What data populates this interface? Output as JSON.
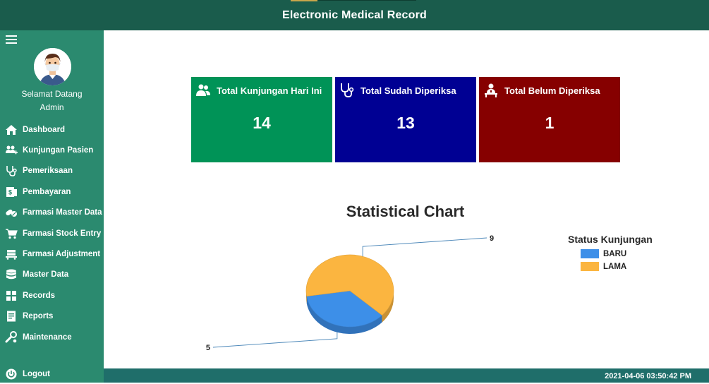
{
  "header": {
    "title": "Electronic Medical Record"
  },
  "sidebar": {
    "welcome": "Selamat Datang",
    "user": "Admin",
    "items": [
      {
        "label": "Dashboard",
        "icon": "home-icon"
      },
      {
        "label": "Kunjungan Pasien",
        "icon": "users-add-icon"
      },
      {
        "label": "Pemeriksaan",
        "icon": "stethoscope-icon"
      },
      {
        "label": "Pembayaran",
        "icon": "invoice-dollar-icon"
      },
      {
        "label": "Farmasi Master Data",
        "icon": "pills-icon"
      },
      {
        "label": "Farmasi Stock Entry",
        "icon": "cart-icon"
      },
      {
        "label": "Farmasi Adjustment",
        "icon": "dolly-icon"
      },
      {
        "label": "Master Data",
        "icon": "database-icon"
      },
      {
        "label": "Records",
        "icon": "th-large-icon"
      },
      {
        "label": "Reports",
        "icon": "file-report-icon"
      },
      {
        "label": "Maintenance",
        "icon": "tools-icon"
      }
    ],
    "logout": "Logout"
  },
  "cards": [
    {
      "title": "Total Kunjungan Hari Ini",
      "value": "14",
      "color": "#009357",
      "icon": "user-friends-icon"
    },
    {
      "title": "Total Sudah Diperiksa",
      "value": "13",
      "color": "#000093",
      "icon": "stethoscope-icon"
    },
    {
      "title": "Total Belum Diperiksa",
      "value": "1",
      "color": "#860000",
      "icon": "hospital-user-icon"
    }
  ],
  "footer": {
    "timestamp": "2021-04-06 03:50:42 PM"
  },
  "chart_data": {
    "type": "pie",
    "title": "Statistical Chart",
    "legend_title": "Status Kunjungan",
    "legend_position": "right",
    "categories": [
      "BARU",
      "LAMA"
    ],
    "values": [
      5,
      9
    ],
    "colors": [
      "#3d8fe8",
      "#fbb540"
    ]
  }
}
